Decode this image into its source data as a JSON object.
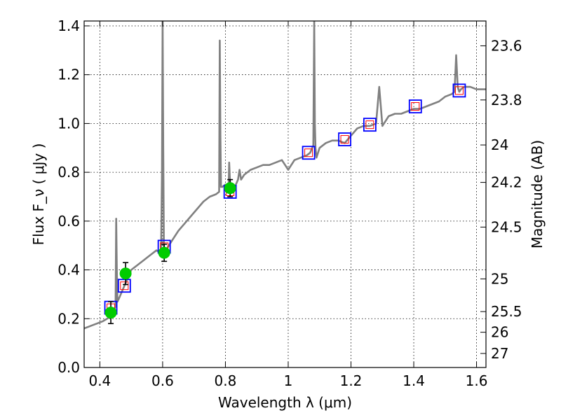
{
  "chart_data": {
    "type": "scatter",
    "xlabel": "Wavelength  λ (μm)",
    "ylabel": "Flux  F_ν  ( μJy )",
    "ylabel_right": "Magnitude (AB)",
    "xlim": [
      0.35,
      1.63
    ],
    "ylim": [
      0.0,
      1.42
    ],
    "grid": true,
    "x_ticks": [
      {
        "value": 0.4,
        "label": "0.4"
      },
      {
        "value": 0.6,
        "label": "0.6"
      },
      {
        "value": 0.8,
        "label": "0.8"
      },
      {
        "value": 1.0,
        "label": "1"
      },
      {
        "value": 1.2,
        "label": "1.2"
      },
      {
        "value": 1.4,
        "label": "1.4"
      },
      {
        "value": 1.6,
        "label": "1.6"
      }
    ],
    "y_ticks": [
      {
        "value": 0.0,
        "label": "0.0"
      },
      {
        "value": 0.2,
        "label": "0.2"
      },
      {
        "value": 0.4,
        "label": "0.4"
      },
      {
        "value": 0.6,
        "label": "0.6"
      },
      {
        "value": 0.8,
        "label": "0.8"
      },
      {
        "value": 1.0,
        "label": "1.0"
      },
      {
        "value": 1.2,
        "label": "1.2"
      },
      {
        "value": 1.4,
        "label": "1.4"
      }
    ],
    "right_ticks": [
      {
        "value": 23.6,
        "label": "23.6"
      },
      {
        "value": 23.8,
        "label": "23.8"
      },
      {
        "value": 24.0,
        "label": "24"
      },
      {
        "value": 24.2,
        "label": "24.2"
      },
      {
        "value": 24.5,
        "label": "24.5"
      },
      {
        "value": 25.0,
        "label": "25"
      },
      {
        "value": 25.5,
        "label": "25.5"
      },
      {
        "value": 26.0,
        "label": "26"
      },
      {
        "value": 27.0,
        "label": "27"
      }
    ],
    "colors": {
      "spectrum": "#808080",
      "model_box": "#0000ff",
      "inner_box": "#ff0000",
      "observed": "#00cc00",
      "errorbar": "#000000"
    },
    "series": [
      {
        "kind": "spectrum",
        "x": [
          0.35,
          0.37,
          0.39,
          0.41,
          0.43,
          0.44,
          0.45,
          0.452,
          0.454,
          0.456,
          0.46,
          0.47,
          0.48,
          0.49,
          0.5,
          0.52,
          0.54,
          0.56,
          0.58,
          0.595,
          0.598,
          0.6,
          0.602,
          0.604,
          0.606,
          0.61,
          0.63,
          0.65,
          0.67,
          0.69,
          0.71,
          0.73,
          0.75,
          0.77,
          0.78,
          0.782,
          0.784,
          0.786,
          0.79,
          0.8,
          0.81,
          0.812,
          0.814,
          0.816,
          0.818,
          0.82,
          0.83,
          0.84,
          0.845,
          0.85,
          0.86,
          0.88,
          0.9,
          0.92,
          0.94,
          0.96,
          0.98,
          1.0,
          1.02,
          1.04,
          1.06,
          1.07,
          1.08,
          1.083,
          1.085,
          1.087,
          1.09,
          1.1,
          1.12,
          1.14,
          1.16,
          1.18,
          1.2,
          1.22,
          1.24,
          1.26,
          1.28,
          1.29,
          1.3,
          1.31,
          1.32,
          1.34,
          1.36,
          1.38,
          1.4,
          1.42,
          1.44,
          1.46,
          1.48,
          1.5,
          1.52,
          1.53,
          1.535,
          1.54,
          1.545,
          1.55,
          1.56,
          1.58,
          1.6,
          1.63
        ],
        "y": [
          0.16,
          0.17,
          0.18,
          0.19,
          0.205,
          0.22,
          0.25,
          0.61,
          0.4,
          0.27,
          0.28,
          0.31,
          0.34,
          0.37,
          0.4,
          0.42,
          0.44,
          0.46,
          0.48,
          0.47,
          0.8,
          1.42,
          0.9,
          0.5,
          0.47,
          0.48,
          0.52,
          0.56,
          0.59,
          0.62,
          0.65,
          0.68,
          0.7,
          0.71,
          0.72,
          1.34,
          0.95,
          0.74,
          0.74,
          0.75,
          0.72,
          0.84,
          0.78,
          0.73,
          0.72,
          0.73,
          0.74,
          0.77,
          0.81,
          0.77,
          0.79,
          0.81,
          0.82,
          0.83,
          0.83,
          0.84,
          0.85,
          0.81,
          0.85,
          0.86,
          0.87,
          0.88,
          0.91,
          1.42,
          1.0,
          0.9,
          0.86,
          0.9,
          0.92,
          0.93,
          0.93,
          0.92,
          0.95,
          0.98,
          0.99,
          0.99,
          1.0,
          1.15,
          0.99,
          1.01,
          1.03,
          1.04,
          1.04,
          1.05,
          1.06,
          1.06,
          1.07,
          1.08,
          1.09,
          1.11,
          1.12,
          1.13,
          1.28,
          1.15,
          1.13,
          1.14,
          1.15,
          1.15,
          1.14,
          1.14
        ]
      },
      {
        "kind": "model-photometry",
        "x": [
          0.435,
          0.478,
          0.605,
          0.815,
          1.065,
          1.18,
          1.26,
          1.405,
          1.545
        ],
        "y": [
          0.245,
          0.335,
          0.495,
          0.72,
          0.88,
          0.935,
          0.995,
          1.07,
          1.135
        ]
      },
      {
        "kind": "observed",
        "x": [
          0.435,
          0.482,
          0.605,
          0.815
        ],
        "y": [
          0.225,
          0.385,
          0.47,
          0.735
        ],
        "err_low": [
          0.045,
          0.045,
          0.035,
          0.035
        ],
        "err_high": [
          0.045,
          0.045,
          0.035,
          0.035
        ]
      }
    ]
  }
}
